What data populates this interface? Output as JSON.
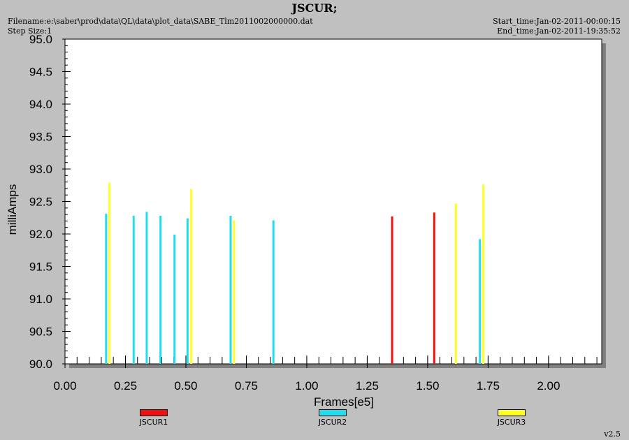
{
  "header": {
    "title": "JSCUR;",
    "filename": "Filename:e:\\saber\\prod\\data\\QL\\data\\plot_data\\SABE_Tlm2011002000000.dat",
    "step_size": "Step Size:1",
    "start_time": "Start_time:Jan-02-2011-00:00:15",
    "end_time": "End_time:Jan-02-2011-19:35:52",
    "version": "v2.5"
  },
  "colors": {
    "background": "#c0c0c0",
    "plot_area": "#ffffff",
    "shadow": "#808080",
    "JSCUR1": "#ee1111",
    "JSCUR2": "#22ddee",
    "JSCUR3": "#ffff22"
  },
  "chart_data": {
    "type": "bar",
    "title": "JSCUR;",
    "xlabel": "Frames[e5]",
    "ylabel": "milliAmps",
    "xlim": [
      0.0,
      2.22
    ],
    "ylim": [
      90.0,
      95.0
    ],
    "x_ticks": [
      "0.00",
      "0.25",
      "0.50",
      "0.75",
      "1.00",
      "1.25",
      "1.50",
      "1.75",
      "2.00"
    ],
    "y_ticks": [
      "90.0",
      "90.5",
      "91.0",
      "91.5",
      "92.0",
      "92.5",
      "93.0",
      "93.5",
      "94.0",
      "94.5",
      "95.0"
    ],
    "legend_position": "bottom",
    "grid": false,
    "series": [
      {
        "name": "JSCUR1",
        "color": "#ee1111",
        "points": [
          {
            "x": 1.353,
            "y": 92.27
          },
          {
            "x": 1.527,
            "y": 92.33
          }
        ]
      },
      {
        "name": "JSCUR2",
        "color": "#22ddee",
        "points": [
          {
            "x": 0.17,
            "y": 92.31
          },
          {
            "x": 0.284,
            "y": 92.28
          },
          {
            "x": 0.338,
            "y": 92.34
          },
          {
            "x": 0.395,
            "y": 92.28
          },
          {
            "x": 0.453,
            "y": 91.99
          },
          {
            "x": 0.507,
            "y": 92.24
          },
          {
            "x": 0.685,
            "y": 92.28
          },
          {
            "x": 0.862,
            "y": 92.21
          },
          {
            "x": 1.716,
            "y": 91.92
          }
        ]
      },
      {
        "name": "JSCUR3",
        "color": "#ffff22",
        "points": [
          {
            "x": 0.184,
            "y": 92.79
          },
          {
            "x": 0.522,
            "y": 92.69
          },
          {
            "x": 0.699,
            "y": 92.21
          },
          {
            "x": 1.617,
            "y": 92.47
          },
          {
            "x": 1.73,
            "y": 92.76
          }
        ]
      }
    ]
  }
}
